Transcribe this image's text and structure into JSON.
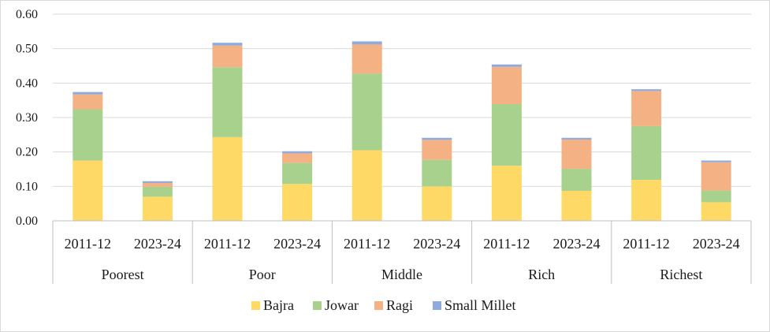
{
  "chart_data": {
    "type": "bar",
    "stacked": true,
    "title": "",
    "xlabel": "",
    "ylabel": "",
    "ylim": [
      0,
      0.6
    ],
    "yticks": [
      "0.00",
      "0.10",
      "0.20",
      "0.30",
      "0.40",
      "0.50",
      "0.60"
    ],
    "grid": true,
    "legend_position": "bottom",
    "groups": [
      {
        "name": "Poorest",
        "categories": [
          "2011-12",
          "2023-24"
        ]
      },
      {
        "name": "Poor",
        "categories": [
          "2011-12",
          "2023-24"
        ]
      },
      {
        "name": "Middle",
        "categories": [
          "2011-12",
          "2023-24"
        ]
      },
      {
        "name": "Rich",
        "categories": [
          "2011-12",
          "2023-24"
        ]
      },
      {
        "name": "Richest",
        "categories": [
          "2011-12",
          "2023-24"
        ]
      }
    ],
    "series": [
      {
        "name": "Bajra",
        "color": "#FFD966",
        "values": [
          0.175,
          0.07,
          0.243,
          0.107,
          0.205,
          0.1,
          0.16,
          0.087,
          0.119,
          0.054
        ]
      },
      {
        "name": "Jowar",
        "color": "#A9D18E",
        "values": [
          0.149,
          0.029,
          0.203,
          0.061,
          0.223,
          0.077,
          0.179,
          0.064,
          0.156,
          0.034
        ]
      },
      {
        "name": "Ragi",
        "color": "#F4B183",
        "values": [
          0.043,
          0.011,
          0.063,
          0.028,
          0.084,
          0.058,
          0.108,
          0.085,
          0.102,
          0.082
        ]
      },
      {
        "name": "Small Millet",
        "color": "#8FAADC",
        "values": [
          0.007,
          0.005,
          0.008,
          0.006,
          0.009,
          0.006,
          0.007,
          0.005,
          0.005,
          0.005
        ]
      }
    ]
  }
}
